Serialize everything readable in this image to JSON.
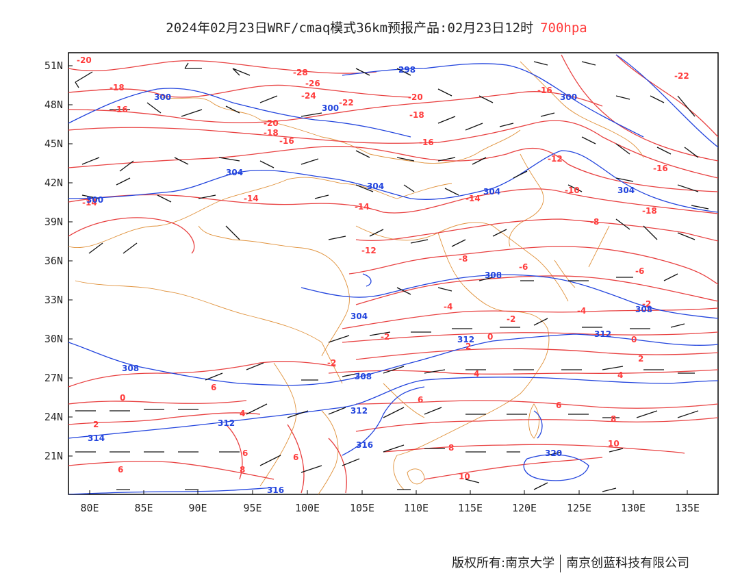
{
  "title": {
    "main": "2024年02月23日WRF/cmaq模式36km预报产品:02月23日12时",
    "level": "700hpa",
    "level_color": "#ff3b3b"
  },
  "axes": {
    "lat_labels": [
      "51N",
      "48N",
      "45N",
      "42N",
      "39N",
      "36N",
      "33N",
      "30N",
      "27N",
      "24N",
      "21N"
    ],
    "lon_labels": [
      "80E",
      "85E",
      "90E",
      "95E",
      "100E",
      "105E",
      "110E",
      "115E",
      "120E",
      "125E",
      "130E",
      "135E"
    ]
  },
  "colors": {
    "temperature": "#e84040",
    "height": "#2244dd",
    "boundary": "#e0913a",
    "wind": "#111111"
  },
  "temperature_labels": [
    "-20",
    "-18",
    "-28",
    "-26",
    "-24",
    "-22",
    "-20",
    "-18",
    "-16",
    "-16",
    "-18",
    "-16",
    "-14",
    "-14",
    "-14",
    "-14",
    "-12",
    "-10",
    "-12",
    "-8",
    "-8",
    "-6",
    "-6",
    "-4",
    "-4",
    "-2",
    "-2",
    "-2",
    "0",
    "0",
    "0",
    "2",
    "2",
    "2",
    "4",
    "4",
    "4",
    "6",
    "6",
    "6",
    "6",
    "6",
    "6",
    "8",
    "8",
    "8",
    "10",
    "10",
    "-22",
    "-16",
    "-16",
    "-18",
    "-20",
    "-2"
  ],
  "height_labels": [
    "300",
    "300",
    "298",
    "300",
    "304",
    "304",
    "304",
    "304",
    "304",
    "308",
    "308",
    "308",
    "308",
    "312",
    "312",
    "312",
    "314",
    "316",
    "316",
    "320",
    "300",
    "312"
  ],
  "footer": {
    "owner": "版权所有:南京大学",
    "company": "南京创蓝科技有限公司"
  }
}
